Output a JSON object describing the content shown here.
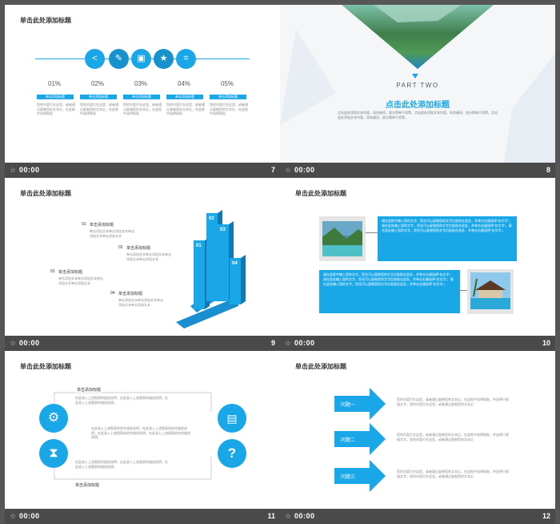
{
  "footer_time": "00:00",
  "slide7": {
    "number": "7",
    "title": "单击此处添加标题",
    "icons": [
      "share-icon",
      "wrench-icon",
      "image-icon",
      "star-icon",
      "crop-icon"
    ],
    "items": [
      {
        "pct": "01%",
        "label": "单击添加标题",
        "text": "您的内容打在这里，或者通过复制您的文本后，在此框中选择粘贴"
      },
      {
        "pct": "02%",
        "label": "单击添加标题",
        "text": "您的内容打在这里，或者通过复制您的文本后，在此框中选择粘贴"
      },
      {
        "pct": "03%",
        "label": "单击添加标题",
        "text": "您的内容打在这里，或者通过复制您的文本后，在此框中选择粘贴"
      },
      {
        "pct": "04%",
        "label": "单击添加标题",
        "text": "您的内容打在这里，或者通过复制您的文本后，在此框中选择粘贴"
      },
      {
        "pct": "05%",
        "label": "单击添加标题",
        "text": "您的内容打在这里，或者通过复制您的文本后，在此框中选择粘贴"
      }
    ]
  },
  "slide8": {
    "number": "8",
    "part": "PART TWO",
    "title": "点击此处添加标题",
    "body": "点击此处添加文本内容，如关键词、部分简单介绍等。点击此处添加文本内容，如关键词、部分简单介绍等。点击此处添加文本内容，如关键词、部分简单介绍等。"
  },
  "slide9": {
    "number": "9",
    "title": "单击此处添加标题",
    "steps": [
      {
        "n": "01",
        "label": "单击添加标题",
        "text": "单击添加文本单击添加文本单击添加文本单击添加文本"
      },
      {
        "n": "02",
        "label": "单击添加标题",
        "text": "单击添加文本单击添加文本单击添加文本单击添加文本"
      },
      {
        "n": "03",
        "label": "单击添加标题",
        "text": "单击添加文本单击添加文本单击添加文本单击添加文本"
      },
      {
        "n": "04",
        "label": "单击添加标题",
        "text": "单击添加文本单击添加文本单击添加文本单击添加文本"
      }
    ],
    "column_labels": [
      "01",
      "02",
      "03",
      "04"
    ]
  },
  "slide10": {
    "number": "10",
    "title": "单击此处添加标题",
    "box1": "请在此框中输入您的文字，您也可以复制您的文字后粘贴在此处，并单击右键选择“仅文字”，请在此处输入您的文字，您也可以复制您的文字后粘贴在此处，并单击右键选择“仅文字”。请在此处输入您的文字，您也可以复制您的文字后粘贴在此处，并单击右键选择“仅文字”。",
    "box2": "请在此框中输入您的文字，您也可以复制您的文字后粘贴在此处，并单击右键选择“仅文字”，请在此处输入您的文字，您也可以复制您的文字后粘贴在此处，并单击右键选择“仅文字”。请在此处输入您的文字，您也可以复制您的文字后粘贴在此处，并单击右键选择“仅文字”。"
  },
  "slide11": {
    "number": "11",
    "title": "单击此处添加标题",
    "top_label": "单击添加标题",
    "bottom_label": "单击添加标题",
    "tl_text": "在此录入上述图表的描述说明，在此录入上述图表的描述说明，在此录入上述图表的描述说明。",
    "center_text": "在此录入上述图表的综合描述说明，在此录入上述图表的综合描述说明，在此录入上述图表的综合描述说明，在此录入上述图表的综合描述说明。",
    "bl_text": "在此录入上述图表的描述说明，在此录入上述图表的描述说明，在此录入上述图表的描述说明。",
    "icons": [
      "gears-icon",
      "hourglass-icon",
      "briefcase-icon",
      "question-icon"
    ]
  },
  "slide12": {
    "number": "12",
    "title": "单击此处添加标题",
    "rows": [
      {
        "label": "问题一",
        "text": "您的内容打在这里，或者通过复制您的文本后，在此框中选择粘贴，并选择只保留文字。您的内容打在这里，或者通过复制您的文本后"
      },
      {
        "label": "问题二",
        "text": "您的内容打在这里，或者通过复制您的文本后，在此框中选择粘贴，并选择只保留文字。您的内容打在这里，或者通过复制您的文本后"
      },
      {
        "label": "问题三",
        "text": "您的内容打在这里，或者通过复制您的文本后，在此框中选择粘贴，并选择只保留文字。您的内容打在这里，或者通过复制您的文本后"
      }
    ]
  },
  "colors": {
    "accent": "#1aa7e8",
    "dark_bar": "#4a4a4a",
    "background": "#565656"
  }
}
